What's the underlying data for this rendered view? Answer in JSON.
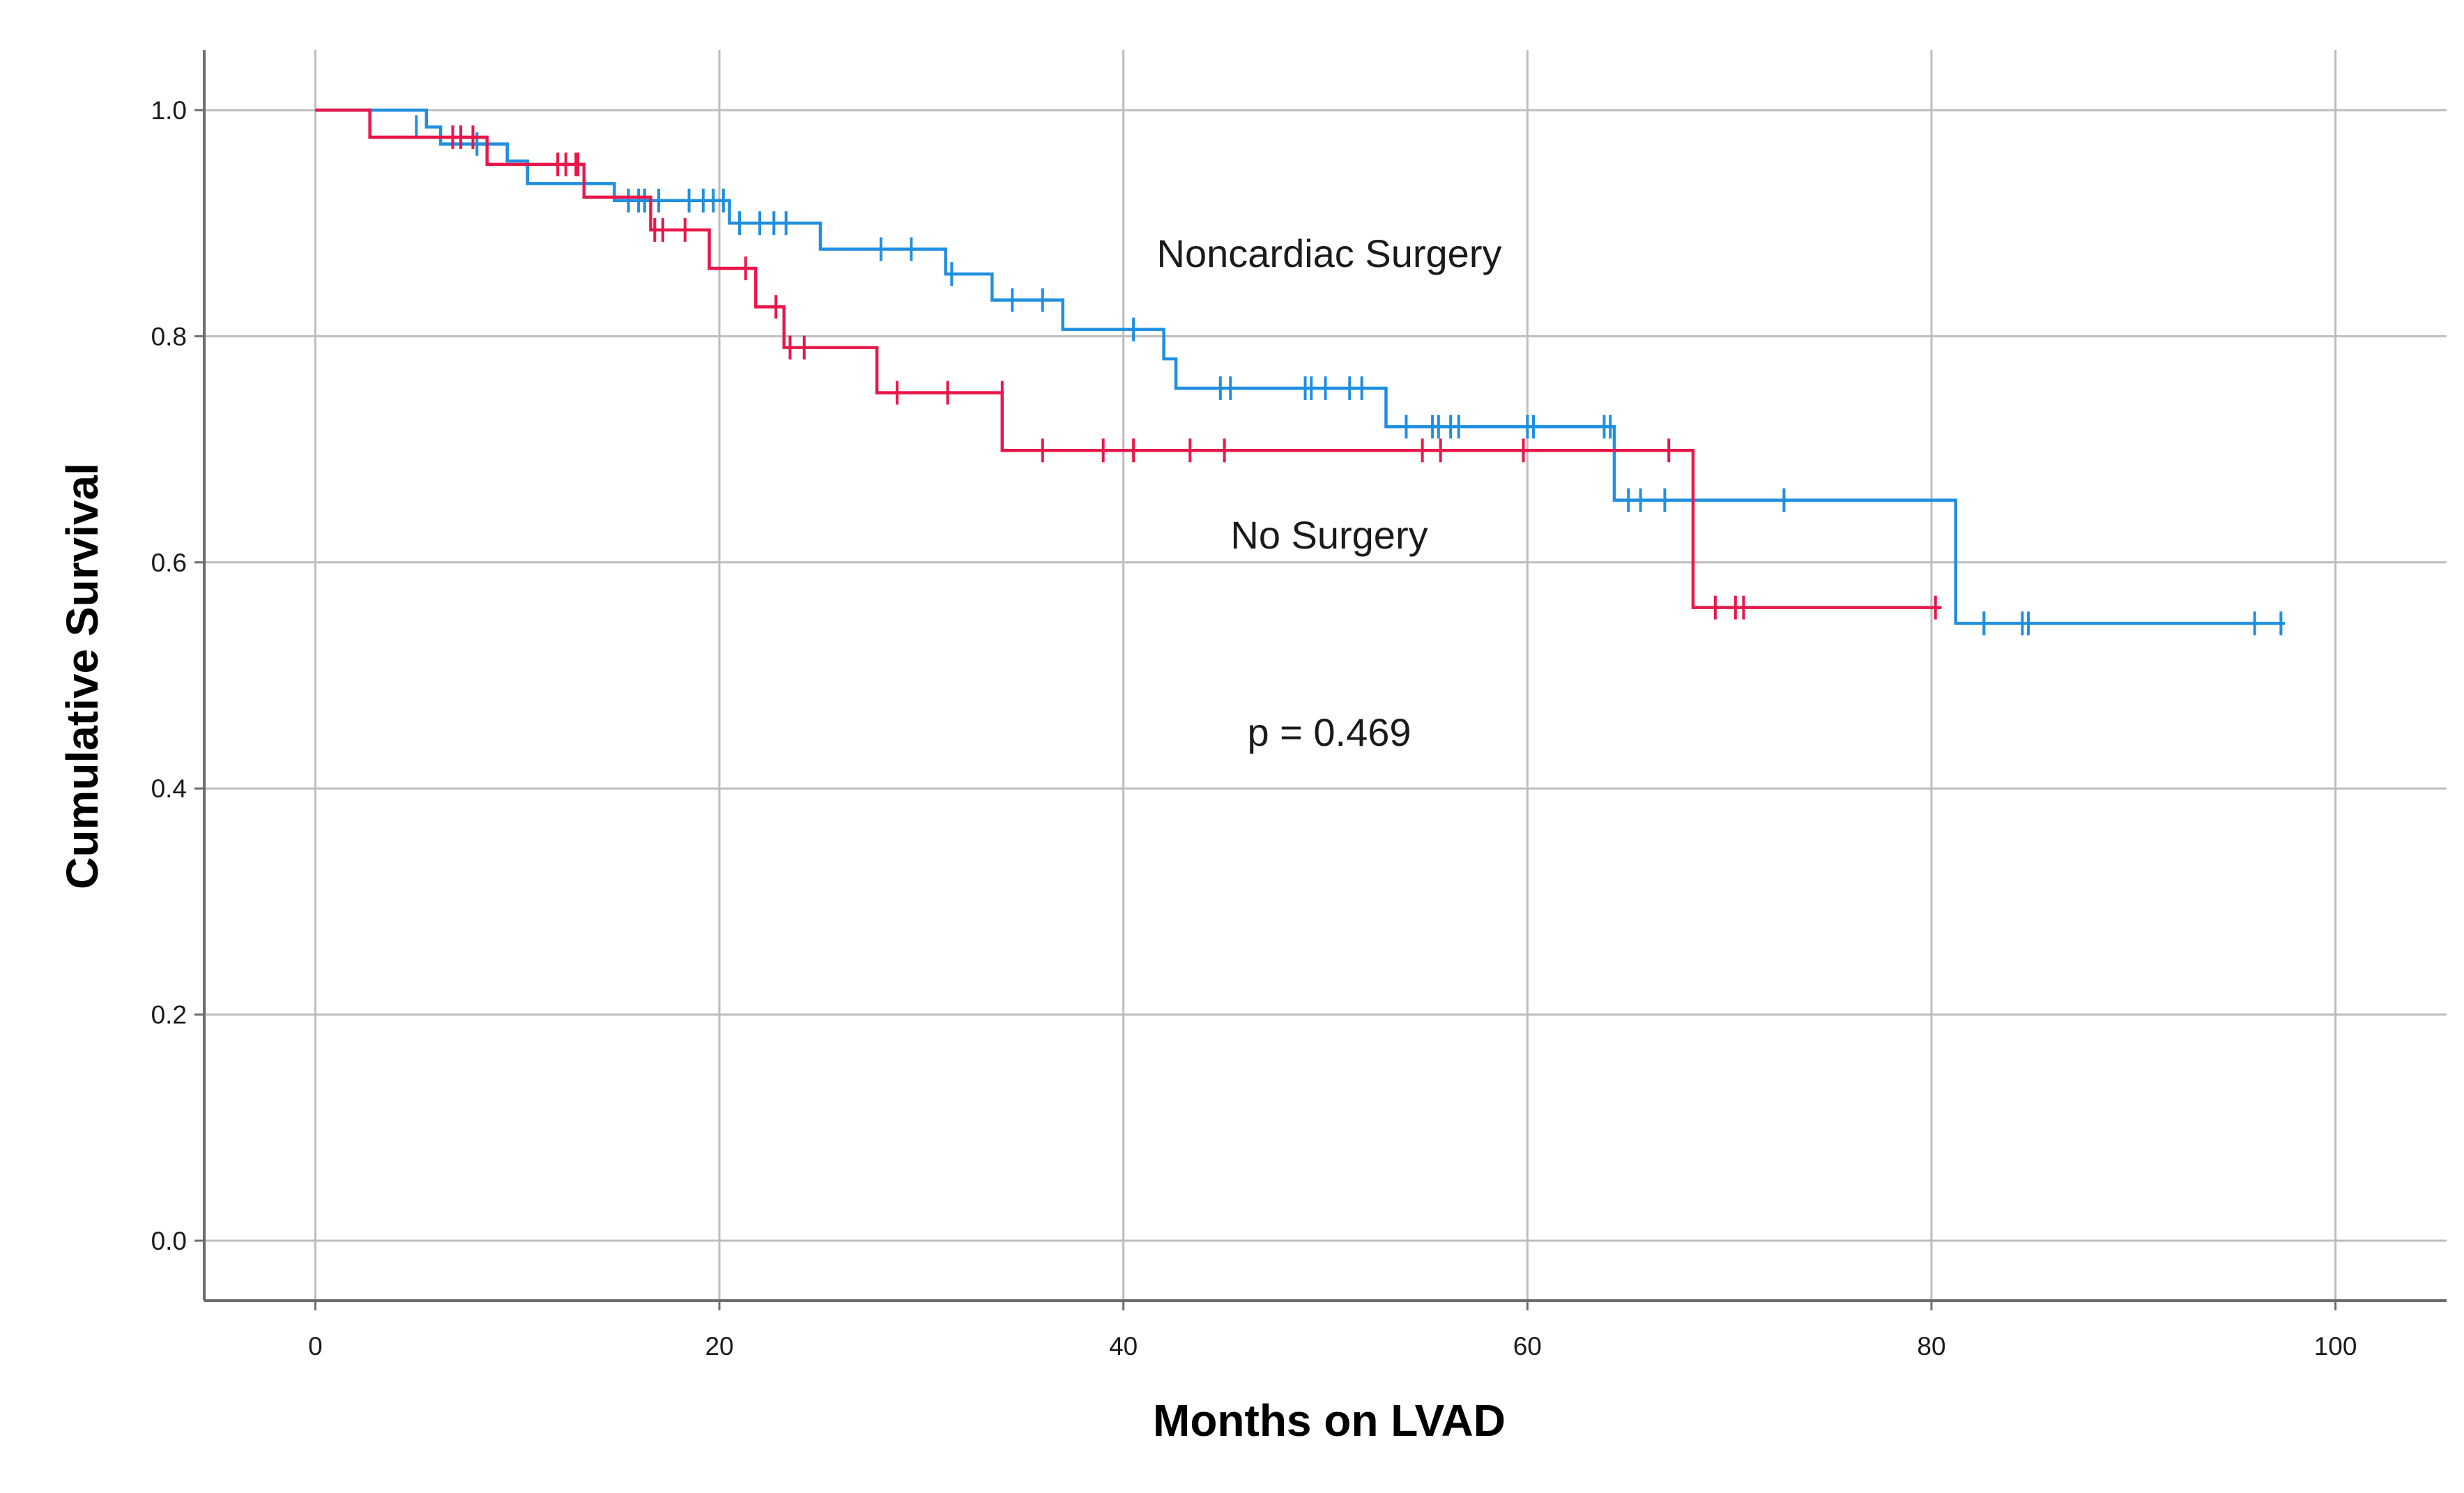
{
  "chart_data": {
    "type": "line",
    "subtype": "kaplan-meier",
    "title": "",
    "xlabel": "Months on LVAD",
    "ylabel": "Cumulative Survival",
    "xlim": [
      -5.5,
      105.5
    ],
    "ylim": [
      -0.053,
      1.053
    ],
    "xticks": [
      0,
      20,
      40,
      60,
      80,
      100
    ],
    "xtick_labels": [
      "0",
      "20",
      "40",
      "60",
      "80",
      "100"
    ],
    "yticks": [
      0.0,
      0.2,
      0.4,
      0.6,
      0.8,
      1.0
    ],
    "ytick_labels": [
      "0.0",
      "0.2",
      "0.4",
      "0.6",
      "0.8",
      "1.0"
    ],
    "grid": true,
    "annotations": [
      {
        "text": "Noncardiac Surgery",
        "x": 50,
        "y": 0.87
      },
      {
        "text": "No Surgery",
        "x": 50,
        "y": 0.62
      },
      {
        "text": "p = 0.469",
        "x": 50,
        "y": 0.45
      }
    ],
    "series": [
      {
        "name": "Noncardiac Surgery",
        "color": "#1f8fe0",
        "steps": [
          [
            0,
            1.0
          ],
          [
            5.5,
            0.985
          ],
          [
            6.2,
            0.97
          ],
          [
            9.5,
            0.955
          ],
          [
            10.5,
            0.935
          ],
          [
            14.8,
            0.92
          ],
          [
            20.5,
            0.9
          ],
          [
            25,
            0.877
          ],
          [
            31.2,
            0.855
          ],
          [
            33.5,
            0.832
          ],
          [
            37,
            0.806
          ],
          [
            42,
            0.78
          ],
          [
            42.6,
            0.754
          ],
          [
            53,
            0.72
          ],
          [
            64.3,
            0.655
          ],
          [
            81.2,
            0.546
          ],
          [
            97.5,
            0.546
          ]
        ],
        "censored": [
          [
            5,
            0.985
          ],
          [
            8,
            0.97
          ],
          [
            15.5,
            0.92
          ],
          [
            16,
            0.92
          ],
          [
            16.3,
            0.92
          ],
          [
            17,
            0.92
          ],
          [
            18.5,
            0.92
          ],
          [
            19.2,
            0.92
          ],
          [
            19.7,
            0.92
          ],
          [
            20.2,
            0.92
          ],
          [
            21,
            0.9
          ],
          [
            22,
            0.9
          ],
          [
            22.7,
            0.9
          ],
          [
            23.3,
            0.9
          ],
          [
            28,
            0.877
          ],
          [
            29.5,
            0.877
          ],
          [
            31.5,
            0.855
          ],
          [
            34.5,
            0.832
          ],
          [
            36,
            0.832
          ],
          [
            40.5,
            0.806
          ],
          [
            44.8,
            0.754
          ],
          [
            45.3,
            0.754
          ],
          [
            49,
            0.754
          ],
          [
            49.3,
            0.754
          ],
          [
            50,
            0.754
          ],
          [
            51.2,
            0.754
          ],
          [
            51.8,
            0.754
          ],
          [
            54,
            0.72
          ],
          [
            55.3,
            0.72
          ],
          [
            55.6,
            0.72
          ],
          [
            56.2,
            0.72
          ],
          [
            56.6,
            0.72
          ],
          [
            60,
            0.72
          ],
          [
            60.3,
            0.72
          ],
          [
            63.8,
            0.72
          ],
          [
            64.1,
            0.72
          ],
          [
            65,
            0.655
          ],
          [
            65.6,
            0.655
          ],
          [
            66.8,
            0.655
          ],
          [
            72.7,
            0.655
          ],
          [
            82.6,
            0.546
          ],
          [
            84.5,
            0.546
          ],
          [
            84.8,
            0.546
          ],
          [
            96,
            0.546
          ],
          [
            97.3,
            0.546
          ]
        ]
      },
      {
        "name": "No Surgery",
        "color": "#e8174a",
        "steps": [
          [
            0,
            1.0
          ],
          [
            2.7,
            0.976
          ],
          [
            8.5,
            0.952
          ],
          [
            13.3,
            0.923
          ],
          [
            16.6,
            0.894
          ],
          [
            19.5,
            0.86
          ],
          [
            21.8,
            0.826
          ],
          [
            23.2,
            0.79
          ],
          [
            27.8,
            0.75
          ],
          [
            34,
            0.699
          ],
          [
            68.2,
            0.56
          ],
          [
            80.5,
            0.56
          ]
        ],
        "censored": [
          [
            6.8,
            0.976
          ],
          [
            7.2,
            0.976
          ],
          [
            7.8,
            0.976
          ],
          [
            12,
            0.952
          ],
          [
            12.4,
            0.952
          ],
          [
            12.9,
            0.952
          ],
          [
            13,
            0.952
          ],
          [
            16.8,
            0.894
          ],
          [
            17.2,
            0.894
          ],
          [
            18.3,
            0.894
          ],
          [
            21.3,
            0.86
          ],
          [
            22.8,
            0.826
          ],
          [
            23.5,
            0.79
          ],
          [
            24.2,
            0.79
          ],
          [
            28.8,
            0.75
          ],
          [
            31.3,
            0.75
          ],
          [
            34,
            0.75
          ],
          [
            36,
            0.699
          ],
          [
            39,
            0.699
          ],
          [
            40.5,
            0.699
          ],
          [
            43.3,
            0.699
          ],
          [
            45,
            0.699
          ],
          [
            54.8,
            0.699
          ],
          [
            55.7,
            0.699
          ],
          [
            59.8,
            0.699
          ],
          [
            67,
            0.699
          ],
          [
            69.3,
            0.56
          ],
          [
            70.3,
            0.56
          ],
          [
            70.7,
            0.56
          ],
          [
            80.2,
            0.56
          ]
        ]
      }
    ]
  }
}
